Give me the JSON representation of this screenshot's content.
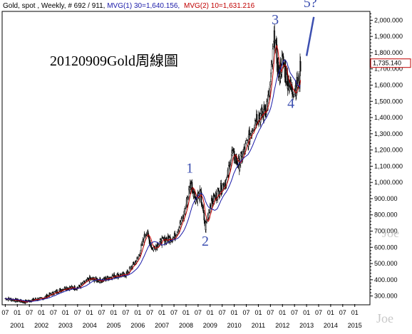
{
  "header": {
    "instrument": "Gold, spot , Weekly, # 692 / 911, ",
    "mvg1": "MVG(1) 30=1,640.156,",
    "mvg2": "MVG(2) 10=1,631.216",
    "mvg1_color": "#1a1aa8",
    "mvg2_color": "#c00000"
  },
  "annotation_title": "20120909Gold周線圖",
  "watermark": "Joe",
  "price_label": {
    "text": "1,735.140",
    "value": 1735.14,
    "color": "#c00000"
  },
  "wave_labels": [
    {
      "text": "1",
      "date": 2008.15,
      "price": 1060
    },
    {
      "text": "2",
      "date": 2008.8,
      "price": 610
    },
    {
      "text": "3",
      "date": 2011.7,
      "price": 1975
    },
    {
      "text": "4",
      "date": 2012.35,
      "price": 1460
    },
    {
      "text": "5?",
      "date": 2013.15,
      "price": 2080
    }
  ],
  "chart_data": {
    "type": "candlestick",
    "series": [
      {
        "name": "MVG(1) 30",
        "color": "#1a1aa8"
      },
      {
        "name": "MVG(2) 10",
        "color": "#c00000"
      }
    ],
    "price_key_points": [
      [
        2000.5,
        285
      ],
      [
        2001.0,
        272
      ],
      [
        2001.3,
        263
      ],
      [
        2001.7,
        278
      ],
      [
        2002.0,
        283
      ],
      [
        2002.5,
        318
      ],
      [
        2003.0,
        350
      ],
      [
        2003.5,
        350
      ],
      [
        2004.0,
        405
      ],
      [
        2004.5,
        395
      ],
      [
        2005.0,
        425
      ],
      [
        2005.5,
        430
      ],
      [
        2006.0,
        530
      ],
      [
        2006.35,
        700
      ],
      [
        2006.6,
        590
      ],
      [
        2007.0,
        640
      ],
      [
        2007.5,
        660
      ],
      [
        2007.9,
        790
      ],
      [
        2008.2,
        1000
      ],
      [
        2008.4,
        900
      ],
      [
        2008.6,
        930
      ],
      [
        2008.8,
        720
      ],
      [
        2009.0,
        860
      ],
      [
        2009.3,
        930
      ],
      [
        2009.7,
        1020
      ],
      [
        2009.9,
        1180
      ],
      [
        2010.2,
        1110
      ],
      [
        2010.5,
        1230
      ],
      [
        2010.9,
        1400
      ],
      [
        2011.2,
        1420
      ],
      [
        2011.45,
        1530
      ],
      [
        2011.67,
        1900
      ],
      [
        2011.85,
        1650
      ],
      [
        2012.0,
        1750
      ],
      [
        2012.2,
        1640
      ],
      [
        2012.4,
        1560
      ],
      [
        2012.55,
        1590
      ],
      [
        2012.7,
        1620
      ],
      [
        2012.75,
        1735
      ]
    ],
    "x_tick_years": [
      "2001",
      "2002",
      "2003",
      "2004",
      "2005",
      "2006",
      "2007",
      "2008",
      "2009",
      "2010",
      "2011",
      "2012",
      "2013",
      "2014",
      "2015"
    ],
    "x_tick_months": [
      "07",
      "01"
    ],
    "y_ticks": [
      "300.000",
      "400.000",
      "500.000",
      "600.000",
      "700.000",
      "800.000",
      "900.000",
      "1,000.000",
      "1,100.000",
      "1,200.000",
      "1,300.000",
      "1,400.000",
      "1,500.000",
      "1,600.000",
      "1,700.000",
      "1,800.000",
      "1,900.000",
      "2,000.000"
    ],
    "ylim": [
      250,
      2050
    ],
    "xlim": [
      2000.4,
      2015.6
    ],
    "y_axis_position": "right",
    "grid": false,
    "projection_line": {
      "from": [
        2013.0,
        1780
      ],
      "to": [
        2013.3,
        2020
      ],
      "color": "#3c4fb0"
    }
  }
}
